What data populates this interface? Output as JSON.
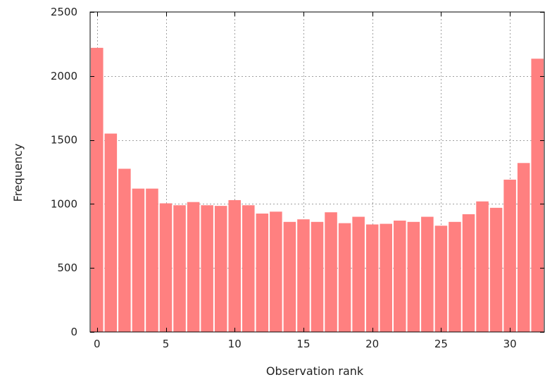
{
  "chart_data": {
    "type": "bar",
    "xlabel": "Observation rank",
    "ylabel": "Frequency",
    "x": [
      0,
      1,
      2,
      3,
      4,
      5,
      6,
      7,
      8,
      9,
      10,
      11,
      12,
      13,
      14,
      15,
      16,
      17,
      18,
      19,
      20,
      21,
      22,
      23,
      24,
      25,
      26,
      27,
      28,
      29,
      30,
      31,
      32
    ],
    "values": [
      2220,
      1550,
      1275,
      1120,
      1120,
      1005,
      990,
      1015,
      990,
      985,
      1030,
      990,
      925,
      940,
      860,
      880,
      860,
      935,
      850,
      900,
      840,
      845,
      870,
      860,
      900,
      830,
      860,
      920,
      1020,
      970,
      1190,
      1320,
      2135
    ],
    "xlim": [
      -0.5,
      32.5
    ],
    "ylim": [
      0,
      2500
    ],
    "xticks": [
      0,
      5,
      10,
      15,
      20,
      25,
      30
    ],
    "yticks": [
      0,
      500,
      1000,
      1500,
      2000,
      2500
    ],
    "grid": true,
    "bar_color": "#ff8080"
  }
}
